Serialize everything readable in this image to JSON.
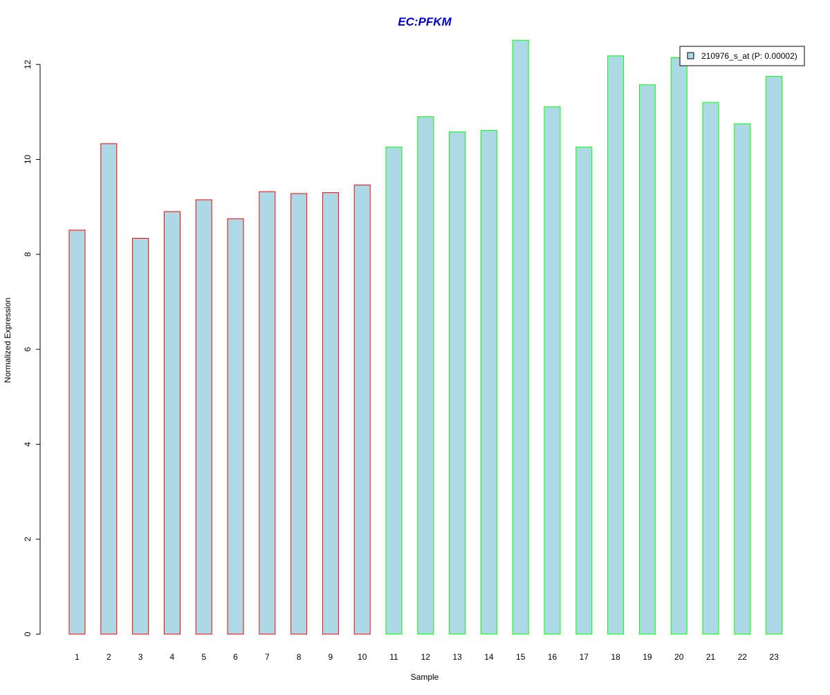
{
  "chart_data": {
    "type": "bar",
    "title": "EC:PFKM",
    "xlabel": "Sample",
    "ylabel": "Normalized Expression",
    "categories": [
      "1",
      "2",
      "3",
      "4",
      "5",
      "6",
      "7",
      "8",
      "9",
      "10",
      "11",
      "12",
      "13",
      "14",
      "15",
      "16",
      "17",
      "18",
      "19",
      "20",
      "21",
      "22",
      "23"
    ],
    "series": [
      {
        "name": "210976_s_at (P: 0.00002)",
        "values": [
          8.51,
          10.33,
          8.34,
          8.9,
          9.15,
          8.75,
          9.32,
          9.28,
          9.3,
          9.46,
          10.26,
          10.9,
          10.58,
          10.61,
          12.51,
          11.11,
          10.26,
          12.18,
          11.57,
          12.14,
          11.2,
          10.75,
          11.75
        ]
      }
    ],
    "groups": [
      {
        "samples": [
          1,
          2,
          3,
          4,
          5,
          6,
          7,
          8,
          9,
          10
        ],
        "border_color": "#ff0000"
      },
      {
        "samples": [
          11,
          12,
          13,
          14,
          15,
          16,
          17,
          18,
          19,
          20,
          21,
          22,
          23
        ],
        "border_color": "#00ff00"
      }
    ],
    "yticks": [
      0,
      2,
      4,
      6,
      8,
      10,
      12
    ],
    "ylim": [
      0,
      12.6
    ],
    "grid": false,
    "legend_position": "top-right",
    "colors": {
      "bar_fill": "#add8e6",
      "title": "#0000cd",
      "axis": "#000000",
      "text": "#000000"
    }
  }
}
